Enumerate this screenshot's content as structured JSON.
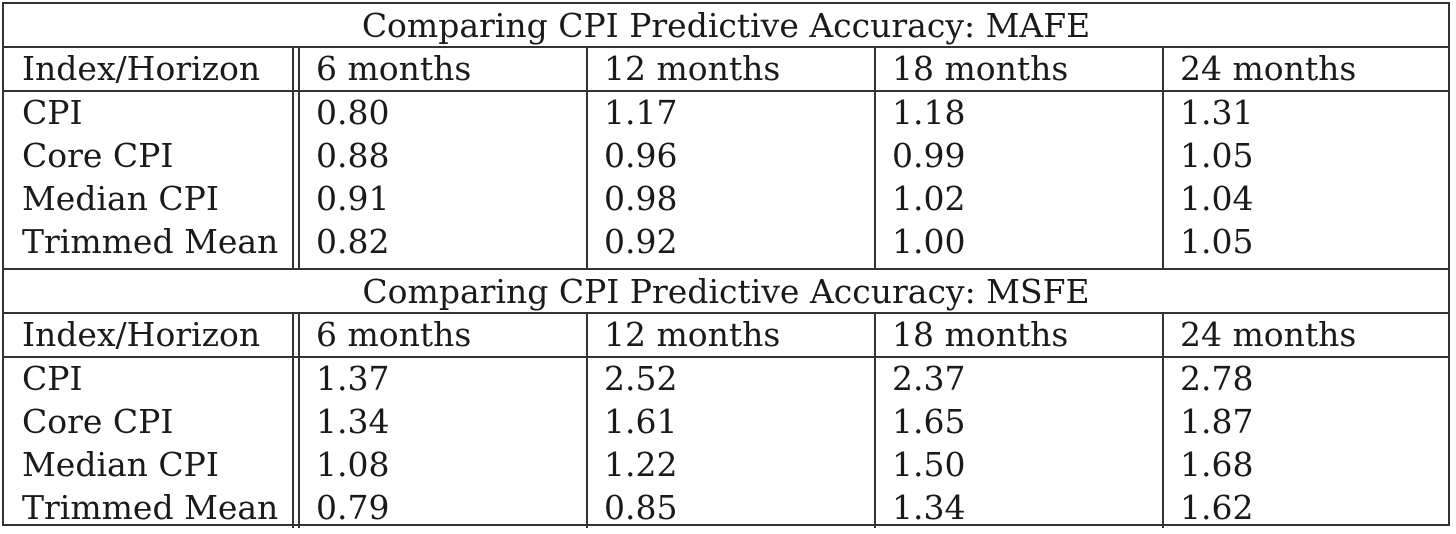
{
  "sections": [
    {
      "title": "Comparing CPI Predictive Accuracy: MAFE",
      "headers": [
        "Index/Horizon",
        "6 months",
        "12 months",
        "18 months",
        "24 months"
      ],
      "rows": [
        [
          "CPI",
          "0.80",
          "1.17",
          "1.18",
          "1.31"
        ],
        [
          "Core CPI",
          "0.88",
          "0.96",
          "0.99",
          "1.05"
        ],
        [
          "Median CPI",
          "0.91",
          "0.98",
          "1.02",
          "1.04"
        ],
        [
          "Trimmed Mean",
          "0.82",
          "0.92",
          "1.00",
          "1.05"
        ]
      ]
    },
    {
      "title": "Comparing CPI Predictive Accuracy: MSFE",
      "headers": [
        "Index/Horizon",
        "6 months",
        "12 months",
        "18 months",
        "24 months"
      ],
      "rows": [
        [
          "CPI",
          "1.37",
          "2.52",
          "2.37",
          "2.78"
        ],
        [
          "Core CPI",
          "1.34",
          "1.61",
          "1.65",
          "1.87"
        ],
        [
          "Median CPI",
          "1.08",
          "1.22",
          "1.50",
          "1.68"
        ],
        [
          "Trimmed Mean",
          "0.79",
          "0.85",
          "1.34",
          "1.62"
        ]
      ]
    }
  ]
}
